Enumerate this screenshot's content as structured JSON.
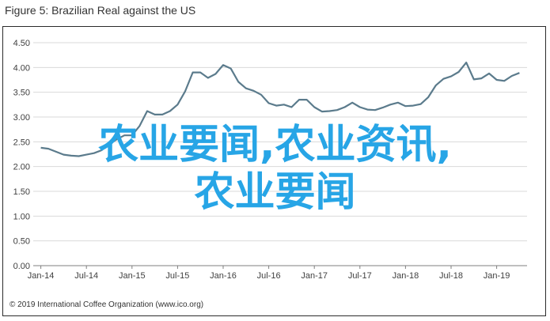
{
  "figure": {
    "title": "Figure 5: Brazilian Real against the US",
    "copyright": "© 2019 International Coffee Organization (www.ico.org)"
  },
  "overlay": {
    "line1": "农业要闻,农业资讯,",
    "line2": "农业要闻",
    "color": "#27a5e6"
  },
  "chart_data": {
    "type": "line",
    "title": "Figure 5: Brazilian Real against the US",
    "xlabel": "",
    "ylabel": "",
    "ylim": [
      0,
      4.5
    ],
    "y_ticks": [
      "0.00",
      "0.50",
      "1.00",
      "1.50",
      "2.00",
      "2.50",
      "3.00",
      "3.50",
      "4.00",
      "4.50"
    ],
    "x_ticks": [
      "Jan-14",
      "Jul-14",
      "Jan-15",
      "Jul-15",
      "Jan-16",
      "Jul-16",
      "Jan-17",
      "Jul-17",
      "Jan-18",
      "Jul-18",
      "Jan-19"
    ],
    "grid": "horizontal",
    "line_color": "#5b7b8c",
    "series": [
      {
        "x": [
          "Jan-14",
          "Feb-14",
          "Mar-14",
          "Apr-14",
          "May-14",
          "Jun-14",
          "Jul-14",
          "Aug-14",
          "Sep-14",
          "Oct-14",
          "Nov-14",
          "Dec-14",
          "Jan-15",
          "Feb-15",
          "Mar-15",
          "Apr-15",
          "May-15",
          "Jun-15",
          "Jul-15",
          "Aug-15",
          "Sep-15",
          "Oct-15",
          "Nov-15",
          "Dec-15",
          "Jan-16",
          "Feb-16",
          "Mar-16",
          "Apr-16",
          "May-16",
          "Jun-16",
          "Jul-16",
          "Aug-16",
          "Sep-16",
          "Oct-16",
          "Nov-16",
          "Dec-16",
          "Jan-17",
          "Feb-17",
          "Mar-17",
          "Apr-17",
          "May-17",
          "Jun-17",
          "Jul-17",
          "Aug-17",
          "Sep-17",
          "Oct-17",
          "Nov-17",
          "Dec-17",
          "Jan-18",
          "Feb-18",
          "Mar-18",
          "Apr-18",
          "May-18",
          "Jun-18",
          "Jul-18",
          "Aug-18",
          "Sep-18",
          "Oct-18",
          "Nov-18",
          "Dec-18",
          "Jan-19",
          "Feb-19",
          "Mar-19",
          "Apr-19"
        ],
        "values": [
          2.38,
          2.36,
          2.3,
          2.24,
          2.22,
          2.21,
          2.24,
          2.27,
          2.33,
          2.45,
          2.55,
          2.63,
          2.63,
          2.82,
          3.12,
          3.05,
          3.05,
          3.12,
          3.25,
          3.52,
          3.9,
          3.9,
          3.79,
          3.87,
          4.05,
          3.98,
          3.71,
          3.58,
          3.53,
          3.45,
          3.28,
          3.23,
          3.25,
          3.2,
          3.35,
          3.35,
          3.2,
          3.11,
          3.12,
          3.14,
          3.2,
          3.29,
          3.2,
          3.15,
          3.14,
          3.19,
          3.25,
          3.29,
          3.22,
          3.23,
          3.26,
          3.4,
          3.64,
          3.77,
          3.82,
          3.91,
          4.1,
          3.76,
          3.78,
          3.88,
          3.75,
          3.73,
          3.83,
          3.89
        ]
      }
    ]
  }
}
